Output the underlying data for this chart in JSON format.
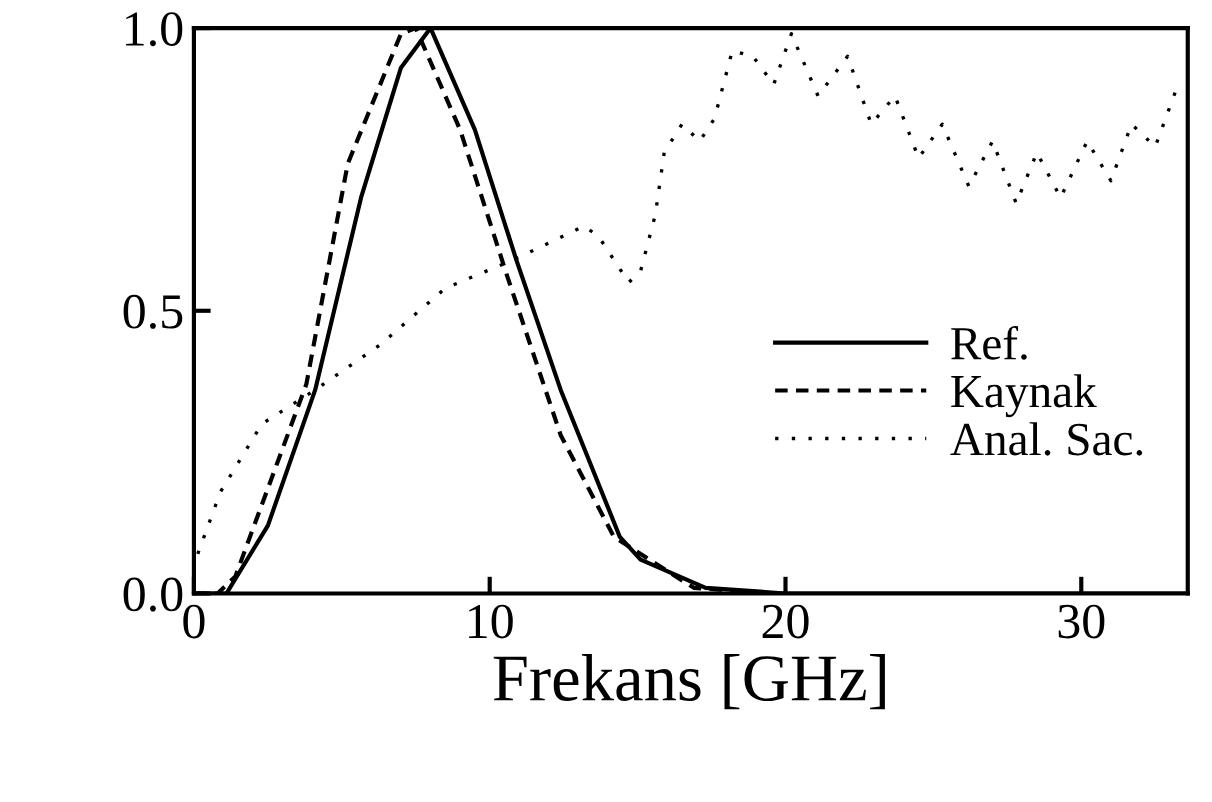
{
  "chart_data": {
    "type": "line",
    "xlabel": "Frekans [GHz]",
    "xlim": [
      0,
      33.6
    ],
    "ylim": [
      0,
      1.0
    ],
    "xticks": [
      0,
      10,
      20,
      30
    ],
    "yticks": [
      {
        "value": 0,
        "label": "0.0"
      },
      {
        "value": 0.5,
        "label": "0.5"
      },
      {
        "value": 1.0,
        "label": "1.0"
      }
    ],
    "grid": false,
    "legend": "right",
    "series": [
      {
        "name": "Ref.",
        "color": "#000000",
        "line_style": "solid",
        "x": [
          0,
          1.1,
          2.5,
          4.1,
          5.65,
          7.0,
          8.0,
          9.5,
          10.9,
          12.4,
          14.4,
          15.1,
          17.3,
          20,
          33.6
        ],
        "values": [
          0,
          0,
          0.12,
          0.36,
          0.7,
          0.93,
          1.0,
          0.82,
          0.59,
          0.36,
          0.1,
          0.06,
          0.01,
          0,
          0
        ]
      },
      {
        "name": "Kaynak",
        "color": "#000000",
        "line_style": "dashed",
        "x": [
          0,
          0.8,
          1.4,
          3.8,
          5.2,
          7.0,
          7.5,
          9.0,
          10.6,
          12.4,
          14.2,
          16.9,
          19.5
        ],
        "values": [
          0,
          0,
          0.03,
          0.37,
          0.76,
          0.99,
          1.0,
          0.82,
          0.56,
          0.28,
          0.1,
          0.01,
          0
        ]
      },
      {
        "name": "Anal. Sac.",
        "color": "#000000",
        "line_style": "dotted",
        "x": [
          0.13,
          0.9,
          2.3,
          4.1,
          6.3,
          8.5,
          10.8,
          13.2,
          13.7,
          14.7,
          15.1,
          15.6,
          15.9,
          16.5,
          17.1,
          17.6,
          18.2,
          18.9,
          19.6,
          20.2,
          21.1,
          22.1,
          22.9,
          23.7,
          24.5,
          25.3,
          26.2,
          27.0,
          27.8,
          28.5,
          29.3,
          30.2,
          31.0,
          31.7,
          32.5,
          33.2
        ],
        "values": [
          0.07,
          0.18,
          0.3,
          0.36,
          0.44,
          0.54,
          0.59,
          0.65,
          0.63,
          0.55,
          0.57,
          0.67,
          0.78,
          0.83,
          0.8,
          0.84,
          0.96,
          0.95,
          0.9,
          0.99,
          0.88,
          0.95,
          0.83,
          0.88,
          0.77,
          0.83,
          0.72,
          0.8,
          0.69,
          0.78,
          0.7,
          0.8,
          0.73,
          0.83,
          0.79,
          0.89
        ]
      }
    ]
  }
}
